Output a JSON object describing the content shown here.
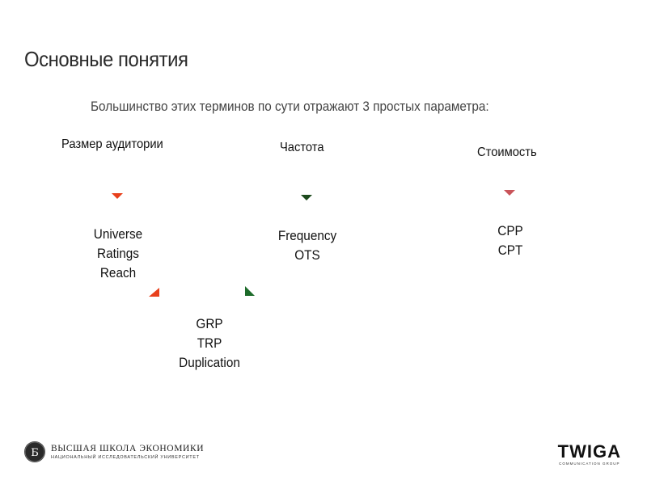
{
  "slide": {
    "title": "Основные понятия",
    "subtitle": "Большинство этих терминов по сути отражают 3 простых параметра:"
  },
  "columns": [
    {
      "heading": "Размер аудитории",
      "terms": [
        "Universe",
        "Ratings",
        "Reach"
      ],
      "arrow_color": "#e8401c"
    },
    {
      "heading": "Частота",
      "terms": [
        "Frequency",
        "OTS"
      ],
      "arrow_color": "#1d4a1d"
    },
    {
      "heading": "Стоимость",
      "terms": [
        "CPP",
        "CPT"
      ],
      "arrow_color": "#c9545a"
    }
  ],
  "combined": {
    "terms": [
      "GRP",
      "TRP",
      "Duplication"
    ],
    "left_arrow_color": "#e8401c",
    "right_arrow_color": "#1d6b2a"
  },
  "footer": {
    "hse": {
      "emblem_letter": "Б",
      "name": "ВЫСШАЯ ШКОЛА ЭКОНОМИКИ",
      "tagline": "НАЦИОНАЛЬНЫЙ ИССЛЕДОВАТЕЛЬСКИЙ УНИВЕРСИТЕТ"
    },
    "twiga": {
      "name": "TWIGA",
      "tagline": "COMMUNICATION GROUP"
    }
  }
}
